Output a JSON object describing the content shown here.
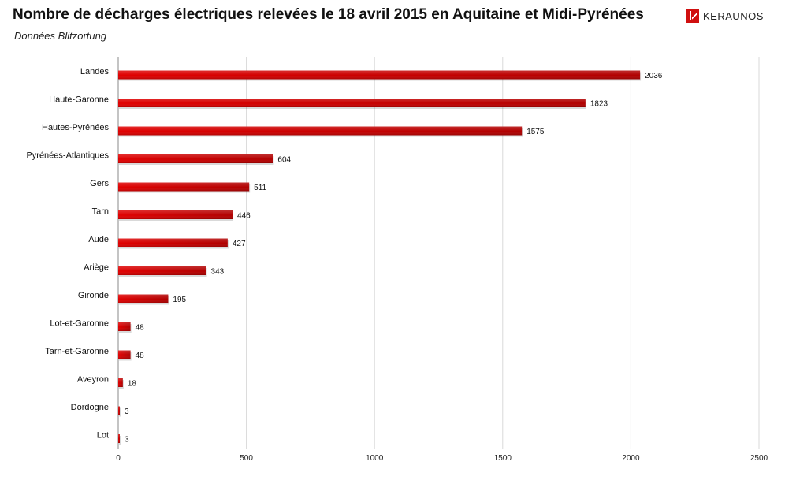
{
  "title": "Nombre de décharges électriques relevées le 18 avril 2015 en Aquitaine et Midi-Pyrénées",
  "subtitle": "Données Blitzortung",
  "brand": "KERAUNOS",
  "chart_data": {
    "type": "bar",
    "orientation": "horizontal",
    "title": "Nombre de décharges électriques relevées le 18 avril 2015 en Aquitaine et Midi-Pyrénées",
    "subtitle": "Données Blitzortung",
    "categories": [
      "Landes",
      "Haute-Garonne",
      "Hautes-Pyrénées",
      "Pyrénées-Atlantiques",
      "Gers",
      "Tarn",
      "Aude",
      "Ariège",
      "Gironde",
      "Lot-et-Garonne",
      "Tarn-et-Garonne",
      "Aveyron",
      "Dordogne",
      "Lot"
    ],
    "values": [
      2036,
      1823,
      1575,
      604,
      511,
      446,
      427,
      343,
      195,
      48,
      48,
      18,
      3,
      3
    ],
    "xlim": [
      0,
      2500
    ],
    "xticks": [
      0,
      500,
      1000,
      1500,
      2000,
      2500
    ],
    "grid": true,
    "data_labels": true,
    "bar_color": "#e00000",
    "bar_color_dark": "#b00000"
  }
}
